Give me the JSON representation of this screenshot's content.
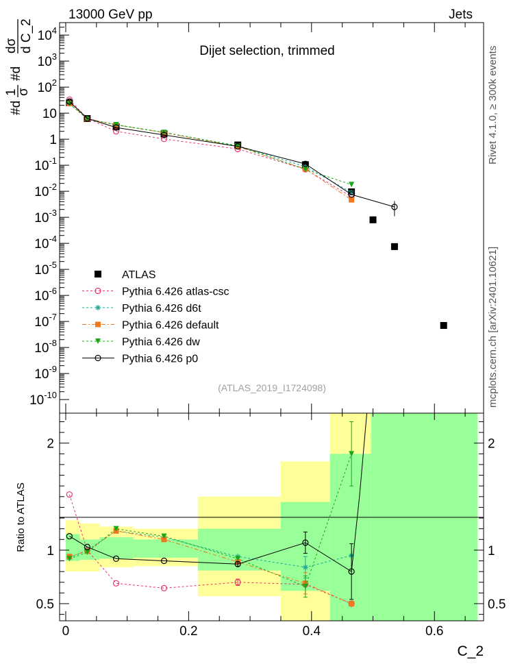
{
  "header": {
    "left": "13000 GeV pp",
    "right": "Jets"
  },
  "side": {
    "top": "Rivet 4.1.0, ≥ 300k events",
    "bottom": "mcplots.cern.ch [arXiv:2401.10621]"
  },
  "chart_data": [
    {
      "type": "scatter",
      "title": "Dijet selection, trimmed",
      "xlabel": "C_2",
      "ylabel": "#d¹/σ #d dσ / d C_2",
      "ylabel_parts": {
        "l1": "1",
        "l2": "σ",
        "l3": "#d",
        "l4": "#d",
        "l5": "dσ",
        "l6": "d C_2"
      },
      "yscale": "log",
      "xlim": [
        -0.01,
        0.68
      ],
      "ylim": [
        3e-11,
        30000
      ],
      "y_tick_labels": [
        "10^-10",
        "10^-9",
        "10^-8",
        "10^-7",
        "10^-6",
        "10^-5",
        "10^-4",
        "10^-3",
        "10^-2",
        "10^-1",
        "1",
        "10",
        "10^2",
        "10^3",
        "10^4"
      ],
      "watermark": "(ATLAS_2019_I1724098)",
      "series": [
        {
          "name": "ATLAS",
          "color": "#000000",
          "marker": "square",
          "x": [
            0.006,
            0.035,
            0.082,
            0.16,
            0.28,
            0.39,
            0.465,
            0.5,
            0.535,
            0.615
          ],
          "y": [
            25,
            6.2,
            3.0,
            1.6,
            0.6,
            0.105,
            0.0095,
            0.0008,
            7.5e-05,
            7e-08
          ]
        },
        {
          "name": "Pythia 6.426 atlas-csc",
          "color": "#e8336a",
          "marker": "open-circle",
          "dash": "3,3",
          "x": [
            0.006,
            0.035,
            0.082,
            0.16,
            0.28,
            0.39,
            0.465
          ],
          "y": [
            33,
            6.3,
            2.0,
            1.02,
            0.42,
            0.07,
            0.0062
          ]
        },
        {
          "name": "Pythia 6.426 d6t",
          "color": "#1aa898",
          "marker": "star",
          "dash": "3,3",
          "x": [
            0.006,
            0.035,
            0.082,
            0.16,
            0.28,
            0.39,
            0.465
          ],
          "y": [
            23,
            6.1,
            3.5,
            1.82,
            0.56,
            0.088,
            0.009
          ]
        },
        {
          "name": "Pythia 6.426 default",
          "color": "#f07820",
          "marker": "square",
          "dash": "6,3,2,3",
          "x": [
            0.006,
            0.035,
            0.082,
            0.16,
            0.28,
            0.39,
            0.465
          ],
          "y": [
            23.5,
            6.1,
            3.55,
            1.78,
            0.52,
            0.072,
            0.0047
          ]
        },
        {
          "name": "Pythia 6.426 dw",
          "color": "#1aa818",
          "marker": "triangle-down",
          "dash": "3,3",
          "x": [
            0.006,
            0.035,
            0.082,
            0.16,
            0.28,
            0.39,
            0.465
          ],
          "y": [
            23,
            6.0,
            3.6,
            1.82,
            0.55,
            0.069,
            0.018
          ]
        },
        {
          "name": "Pythia 6.426 p0",
          "color": "#000000",
          "marker": "open-circle",
          "dash": "",
          "x": [
            0.006,
            0.035,
            0.082,
            0.16,
            0.28,
            0.39,
            0.465,
            0.535
          ],
          "y": [
            28,
            6.3,
            2.8,
            1.45,
            0.53,
            0.112,
            0.0075,
            0.0025
          ]
        }
      ]
    },
    {
      "type": "scatter",
      "xlabel": "C_2",
      "ylabel": "Ratio to ATLAS",
      "xlim": [
        -0.01,
        0.68
      ],
      "ylim": [
        0.34,
        2.28
      ],
      "x_ticks": [
        0,
        0.2,
        0.4,
        0.6
      ],
      "x_tick_labels": [
        "0",
        "0.2",
        "0.4",
        "0.6"
      ],
      "y_ticks": [
        0.5,
        1,
        2
      ],
      "y_tick_labels": [
        "0.5",
        "1",
        "2"
      ],
      "bands": [
        {
          "x0": 0.0,
          "x1": 0.023,
          "y_lo": 0.8,
          "y_hi": 1.28,
          "g_lo": 0.9,
          "g_hi": 1.15
        },
        {
          "x0": 0.023,
          "x1": 0.055,
          "y_lo": 0.8,
          "y_hi": 1.25,
          "g_lo": 0.91,
          "g_hi": 1.1
        },
        {
          "x0": 0.055,
          "x1": 0.11,
          "y_lo": 0.84,
          "y_hi": 1.22,
          "g_lo": 0.92,
          "g_hi": 1.12
        },
        {
          "x0": 0.11,
          "x1": 0.215,
          "y_lo": 0.85,
          "y_hi": 1.2,
          "g_lo": 0.93,
          "g_hi": 1.1
        },
        {
          "x0": 0.215,
          "x1": 0.35,
          "y_lo": 0.57,
          "y_hi": 1.5,
          "g_lo": 0.81,
          "g_hi": 1.2
        },
        {
          "x0": 0.35,
          "x1": 0.43,
          "y_lo": 0.34,
          "y_hi": 1.83,
          "g_lo": 0.62,
          "g_hi": 1.45
        },
        {
          "x0": 0.43,
          "x1": 0.497,
          "y_lo": 0.34,
          "y_hi": 2.28,
          "g_lo": 0.34,
          "g_hi": 1.9
        },
        {
          "x0": 0.497,
          "x1": 0.67,
          "y_lo": 0.34,
          "y_hi": 2.28,
          "g_lo": 0.34,
          "g_hi": 2.28
        }
      ],
      "series": [
        {
          "name": "Pythia 6.426 atlas-csc",
          "color": "#e8336a",
          "marker": "open-circle",
          "dash": "3,3",
          "x": [
            0.006,
            0.035,
            0.082,
            0.16,
            0.28,
            0.39,
            0.465
          ],
          "y": [
            1.52,
            1.0,
            0.69,
            0.645,
            0.7,
            0.68,
            0.5
          ],
          "err": [
            0,
            0,
            0,
            0,
            0.03,
            0,
            0
          ]
        },
        {
          "name": "Pythia 6.426 d6t",
          "color": "#1aa898",
          "marker": "star",
          "dash": "3,3",
          "x": [
            0.006,
            0.035,
            0.082,
            0.16,
            0.28,
            0.39,
            0.465
          ],
          "y": [
            0.93,
            1.0,
            1.18,
            1.12,
            0.94,
            0.84,
            0.95
          ],
          "err": [
            0,
            0,
            0,
            0,
            0,
            0.1,
            0
          ]
        },
        {
          "name": "Pythia 6.426 default",
          "color": "#f07820",
          "marker": "square",
          "dash": "6,3,2,3",
          "x": [
            0.006,
            0.035,
            0.082,
            0.16,
            0.28,
            0.39,
            0.465
          ],
          "y": [
            0.94,
            0.99,
            1.18,
            1.1,
            0.89,
            0.69,
            0.5
          ],
          "err": [
            0,
            0,
            0,
            0,
            0,
            0.1,
            0
          ]
        },
        {
          "name": "Pythia 6.426 dw",
          "color": "#1aa818",
          "marker": "triangle-down",
          "dash": "3,3",
          "x": [
            0.006,
            0.035,
            0.082,
            0.16,
            0.28,
            0.39,
            0.465
          ],
          "y": [
            0.92,
            0.98,
            1.2,
            1.13,
            0.92,
            0.66,
            1.9
          ],
          "err": [
            0,
            0,
            0,
            0,
            0,
            0.1,
            0.3
          ]
        },
        {
          "name": "Pythia 6.426 p0",
          "color": "#000000",
          "marker": "open-circle",
          "dash": "",
          "x": [
            0.006,
            0.035,
            0.082,
            0.16,
            0.28,
            0.39,
            0.465,
            0.478,
            0.49
          ],
          "y": [
            1.13,
            1.03,
            0.92,
            0.9,
            0.87,
            1.07,
            0.8,
            1.5,
            2.28
          ],
          "err": [
            0,
            0,
            0,
            0,
            0.02,
            0.1,
            0.26,
            0,
            0
          ]
        }
      ]
    }
  ]
}
